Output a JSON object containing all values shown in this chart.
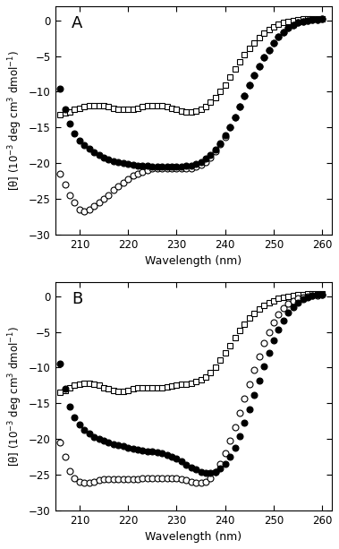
{
  "panel_A_label": "A",
  "panel_B_label": "B",
  "xlabel": "Wavelength (nm)",
  "ylabel": "[θ] (10$^{-3}$ deg cm$^3$ dmol$^{-1}$)",
  "xlim": [
    205,
    262
  ],
  "ylim": [
    -30,
    2
  ],
  "xticks": [
    210,
    220,
    230,
    240,
    250,
    260
  ],
  "yticks": [
    0,
    -5,
    -10,
    -15,
    -20,
    -25,
    -30
  ],
  "wavelengths": [
    206,
    207,
    208,
    209,
    210,
    211,
    212,
    213,
    214,
    215,
    216,
    217,
    218,
    219,
    220,
    221,
    222,
    223,
    224,
    225,
    226,
    227,
    228,
    229,
    230,
    231,
    232,
    233,
    234,
    235,
    236,
    237,
    238,
    239,
    240,
    241,
    242,
    243,
    244,
    245,
    246,
    247,
    248,
    249,
    250,
    251,
    252,
    253,
    254,
    255,
    256,
    257,
    258,
    259,
    260
  ],
  "A_square": [
    -13.2,
    -13.0,
    -12.8,
    -12.5,
    -12.3,
    -12.1,
    -12.0,
    -11.9,
    -11.9,
    -12.0,
    -12.1,
    -12.3,
    -12.4,
    -12.5,
    -12.5,
    -12.4,
    -12.3,
    -12.1,
    -12.0,
    -11.9,
    -11.9,
    -12.0,
    -12.1,
    -12.3,
    -12.5,
    -12.7,
    -12.8,
    -12.8,
    -12.7,
    -12.5,
    -12.1,
    -11.5,
    -10.8,
    -9.9,
    -9.0,
    -7.9,
    -6.8,
    -5.8,
    -4.8,
    -3.9,
    -3.1,
    -2.4,
    -1.8,
    -1.3,
    -0.9,
    -0.5,
    -0.3,
    -0.1,
    0.0,
    0.1,
    0.2,
    0.2,
    0.2,
    0.2,
    0.2
  ],
  "A_open_circle": [
    -21.5,
    -23.0,
    -24.5,
    -25.5,
    -26.5,
    -26.8,
    -26.5,
    -26.0,
    -25.5,
    -25.0,
    -24.5,
    -23.8,
    -23.2,
    -22.7,
    -22.2,
    -21.8,
    -21.5,
    -21.2,
    -21.0,
    -20.8,
    -20.7,
    -20.7,
    -20.7,
    -20.8,
    -20.8,
    -20.8,
    -20.8,
    -20.7,
    -20.5,
    -20.2,
    -19.8,
    -19.2,
    -18.4,
    -17.4,
    -16.3,
    -15.0,
    -13.6,
    -12.1,
    -10.6,
    -9.1,
    -7.7,
    -6.4,
    -5.2,
    -4.1,
    -3.1,
    -2.3,
    -1.6,
    -1.0,
    -0.6,
    -0.3,
    -0.1,
    0.0,
    0.1,
    0.1,
    0.2
  ],
  "A_filled_circle": [
    -9.5,
    -12.5,
    -14.5,
    -15.8,
    -16.8,
    -17.5,
    -18.0,
    -18.5,
    -18.9,
    -19.2,
    -19.5,
    -19.7,
    -19.9,
    -20.0,
    -20.1,
    -20.2,
    -20.3,
    -20.4,
    -20.4,
    -20.5,
    -20.5,
    -20.5,
    -20.5,
    -20.5,
    -20.5,
    -20.5,
    -20.4,
    -20.3,
    -20.1,
    -19.8,
    -19.4,
    -18.8,
    -18.1,
    -17.2,
    -16.1,
    -14.9,
    -13.6,
    -12.1,
    -10.6,
    -9.1,
    -7.7,
    -6.4,
    -5.2,
    -4.1,
    -3.1,
    -2.3,
    -1.6,
    -1.0,
    -0.6,
    -0.3,
    -0.1,
    0.0,
    0.1,
    0.1,
    0.2
  ],
  "B_square": [
    -13.5,
    -13.2,
    -12.8,
    -12.5,
    -12.3,
    -12.2,
    -12.2,
    -12.3,
    -12.5,
    -12.8,
    -13.0,
    -13.2,
    -13.3,
    -13.3,
    -13.2,
    -13.0,
    -12.9,
    -12.8,
    -12.8,
    -12.8,
    -12.8,
    -12.8,
    -12.7,
    -12.6,
    -12.5,
    -12.4,
    -12.3,
    -12.2,
    -12.0,
    -11.7,
    -11.3,
    -10.7,
    -9.9,
    -9.0,
    -8.0,
    -6.9,
    -5.8,
    -4.8,
    -3.9,
    -3.1,
    -2.4,
    -1.8,
    -1.3,
    -0.9,
    -0.6,
    -0.3,
    -0.1,
    0.0,
    0.1,
    0.2,
    0.2,
    0.3,
    0.3,
    0.3,
    0.3
  ],
  "B_open_circle": [
    -20.5,
    -22.5,
    -24.5,
    -25.5,
    -26.0,
    -26.2,
    -26.2,
    -26.0,
    -25.8,
    -25.7,
    -25.6,
    -25.6,
    -25.6,
    -25.6,
    -25.6,
    -25.6,
    -25.6,
    -25.5,
    -25.5,
    -25.5,
    -25.5,
    -25.5,
    -25.5,
    -25.5,
    -25.5,
    -25.6,
    -25.8,
    -26.0,
    -26.2,
    -26.2,
    -26.0,
    -25.5,
    -24.7,
    -23.5,
    -22.0,
    -20.3,
    -18.4,
    -16.4,
    -14.4,
    -12.3,
    -10.3,
    -8.4,
    -6.6,
    -5.1,
    -3.7,
    -2.6,
    -1.7,
    -1.0,
    -0.6,
    -0.3,
    -0.1,
    0.0,
    0.1,
    0.1,
    0.2
  ],
  "B_filled_circle": [
    -9.5,
    -13.0,
    -15.5,
    -17.0,
    -18.0,
    -18.8,
    -19.3,
    -19.7,
    -20.0,
    -20.3,
    -20.5,
    -20.7,
    -20.9,
    -21.0,
    -21.2,
    -21.4,
    -21.5,
    -21.6,
    -21.7,
    -21.8,
    -21.9,
    -22.0,
    -22.2,
    -22.5,
    -22.8,
    -23.2,
    -23.6,
    -24.0,
    -24.3,
    -24.6,
    -24.8,
    -24.8,
    -24.6,
    -24.2,
    -23.5,
    -22.5,
    -21.2,
    -19.6,
    -17.8,
    -15.9,
    -13.9,
    -11.8,
    -9.8,
    -7.9,
    -6.2,
    -4.7,
    -3.4,
    -2.3,
    -1.5,
    -0.9,
    -0.4,
    -0.1,
    0.1,
    0.2,
    0.2
  ],
  "marker_size": 4.5,
  "ms_square": 4.5,
  "ms_circle": 5
}
